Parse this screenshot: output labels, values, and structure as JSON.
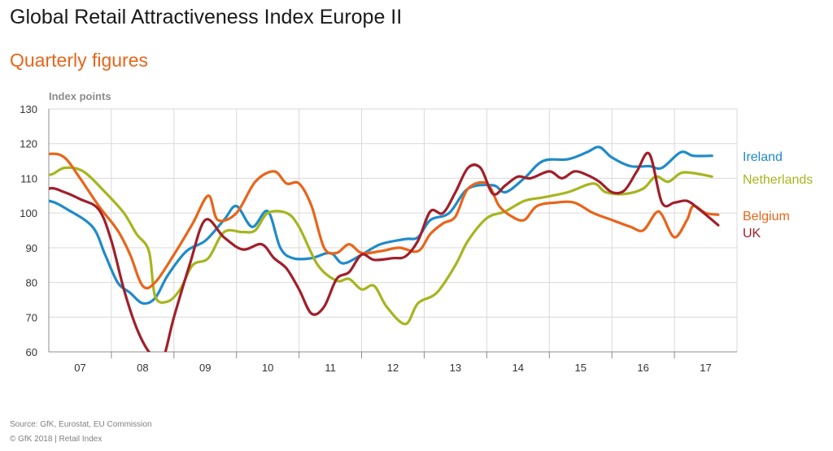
{
  "header": {
    "title": "Global Retail Attractiveness Index Europe II",
    "subtitle": "Quarterly figures"
  },
  "footer": {
    "source": "Source: GfK, Eurostat, EU  Commission",
    "copyright": "© GfK 2018 | Retail Index"
  },
  "colors": {
    "subtitle": "#e8651a",
    "grid": "#d9d9d9",
    "axis": "#8c8c8c"
  },
  "chart_data": {
    "type": "line",
    "title": "Global Retail Attractiveness Index Europe II",
    "subtitle": "Quarterly figures",
    "xlabel": "",
    "ylabel": "Index points",
    "ylim": [
      60,
      130
    ],
    "yticks": [
      60,
      70,
      80,
      90,
      100,
      110,
      120,
      130
    ],
    "categories": [
      "07",
      "08",
      "09",
      "10",
      "11",
      "12",
      "13",
      "14",
      "15",
      "16",
      "17"
    ],
    "grid": true,
    "legend": "right, inline labels at line ends",
    "series": [
      {
        "name": "Ireland",
        "color": "#1f8bc9",
        "points": [
          [
            0.0,
            102.5
          ],
          [
            0.3,
            103.5
          ],
          [
            0.6,
            101
          ],
          [
            1.0,
            96
          ],
          [
            1.2,
            88
          ],
          [
            1.4,
            80
          ],
          [
            1.6,
            77
          ],
          [
            1.8,
            74
          ],
          [
            2.0,
            75.5
          ],
          [
            2.2,
            82
          ],
          [
            2.5,
            89
          ],
          [
            2.8,
            92
          ],
          [
            3.1,
            98
          ],
          [
            3.3,
            102
          ],
          [
            3.55,
            96
          ],
          [
            3.8,
            100.5
          ],
          [
            4.0,
            90
          ],
          [
            4.2,
            87
          ],
          [
            4.5,
            87
          ],
          [
            4.8,
            88.5
          ],
          [
            5.0,
            85.5
          ],
          [
            5.3,
            88
          ],
          [
            5.6,
            91
          ],
          [
            6.0,
            92.5
          ],
          [
            6.2,
            93
          ],
          [
            6.4,
            98
          ],
          [
            6.7,
            100
          ],
          [
            7.0,
            107
          ],
          [
            7.4,
            108
          ],
          [
            7.6,
            106
          ],
          [
            7.9,
            110
          ],
          [
            8.2,
            115
          ],
          [
            8.6,
            115.5
          ],
          [
            8.9,
            117.5
          ],
          [
            9.1,
            119
          ],
          [
            9.3,
            116
          ],
          [
            9.6,
            113.5
          ],
          [
            9.9,
            113.5
          ],
          [
            10.1,
            113
          ],
          [
            10.4,
            117.5
          ],
          [
            10.6,
            116.5
          ],
          [
            10.9,
            116.5
          ]
        ]
      },
      {
        "name": "Netherlands",
        "color": "#a6b51f",
        "points": [
          [
            0.0,
            113.5
          ],
          [
            0.3,
            111
          ],
          [
            0.55,
            113
          ],
          [
            0.85,
            112
          ],
          [
            1.2,
            106
          ],
          [
            1.5,
            100
          ],
          [
            1.7,
            94
          ],
          [
            1.9,
            89
          ],
          [
            2.0,
            76
          ],
          [
            2.2,
            74.5
          ],
          [
            2.4,
            78
          ],
          [
            2.6,
            85
          ],
          [
            2.85,
            87
          ],
          [
            3.1,
            94.5
          ],
          [
            3.4,
            94.5
          ],
          [
            3.6,
            95
          ],
          [
            3.8,
            100
          ],
          [
            4.1,
            100
          ],
          [
            4.3,
            96
          ],
          [
            4.6,
            85
          ],
          [
            4.9,
            80.5
          ],
          [
            5.1,
            81
          ],
          [
            5.3,
            78
          ],
          [
            5.5,
            79
          ],
          [
            5.7,
            73
          ],
          [
            6.0,
            68
          ],
          [
            6.2,
            74
          ],
          [
            6.5,
            77
          ],
          [
            6.8,
            85
          ],
          [
            7.0,
            92
          ],
          [
            7.3,
            98.5
          ],
          [
            7.6,
            100.5
          ],
          [
            7.9,
            103.5
          ],
          [
            8.2,
            104.5
          ],
          [
            8.6,
            106
          ],
          [
            9.0,
            108.5
          ],
          [
            9.2,
            106
          ],
          [
            9.5,
            105.5
          ],
          [
            9.8,
            107
          ],
          [
            10.0,
            110.5
          ],
          [
            10.2,
            109
          ],
          [
            10.4,
            111.5
          ],
          [
            10.6,
            111.5
          ],
          [
            10.9,
            110.5
          ]
        ]
      },
      {
        "name": "Belgium",
        "color": "#e8651a",
        "points": [
          [
            0.0,
            115
          ],
          [
            0.3,
            117
          ],
          [
            0.55,
            116
          ],
          [
            0.8,
            110
          ],
          [
            1.1,
            102
          ],
          [
            1.4,
            95
          ],
          [
            1.6,
            88
          ],
          [
            1.8,
            79
          ],
          [
            2.0,
            80
          ],
          [
            2.3,
            88
          ],
          [
            2.6,
            97
          ],
          [
            2.85,
            105
          ],
          [
            3.0,
            98
          ],
          [
            3.3,
            100
          ],
          [
            3.6,
            109
          ],
          [
            3.9,
            112
          ],
          [
            4.1,
            108.5
          ],
          [
            4.3,
            108.5
          ],
          [
            4.5,
            102
          ],
          [
            4.7,
            90
          ],
          [
            4.9,
            88.5
          ],
          [
            5.1,
            91
          ],
          [
            5.3,
            88.5
          ],
          [
            5.6,
            89
          ],
          [
            5.9,
            90
          ],
          [
            6.2,
            89
          ],
          [
            6.4,
            94
          ],
          [
            6.6,
            97
          ],
          [
            6.8,
            99
          ],
          [
            7.0,
            107
          ],
          [
            7.3,
            108.5
          ],
          [
            7.5,
            102
          ],
          [
            7.7,
            99
          ],
          [
            7.9,
            98
          ],
          [
            8.1,
            102
          ],
          [
            8.4,
            103
          ],
          [
            8.7,
            103
          ],
          [
            9.0,
            100
          ],
          [
            9.3,
            98
          ],
          [
            9.6,
            96
          ],
          [
            9.8,
            95
          ],
          [
            10.0,
            100
          ],
          [
            10.1,
            99.5
          ],
          [
            10.3,
            93
          ],
          [
            10.5,
            98
          ],
          [
            10.6,
            102
          ],
          [
            10.8,
            100
          ],
          [
            11.0,
            99.5
          ]
        ]
      },
      {
        "name": "UK",
        "color": "#a0202a",
        "points": [
          [
            0.0,
            103
          ],
          [
            0.3,
            107
          ],
          [
            0.55,
            106
          ],
          [
            0.8,
            104
          ],
          [
            1.1,
            101
          ],
          [
            1.3,
            92
          ],
          [
            1.5,
            78
          ],
          [
            1.7,
            67
          ],
          [
            1.9,
            60
          ],
          [
            2.1,
            57
          ],
          [
            2.3,
            70
          ],
          [
            2.55,
            85
          ],
          [
            2.8,
            98
          ],
          [
            3.1,
            93
          ],
          [
            3.4,
            89.5
          ],
          [
            3.7,
            91
          ],
          [
            3.9,
            87
          ],
          [
            4.1,
            84
          ],
          [
            4.3,
            78
          ],
          [
            4.5,
            71
          ],
          [
            4.7,
            73
          ],
          [
            4.9,
            81
          ],
          [
            5.1,
            83
          ],
          [
            5.3,
            88
          ],
          [
            5.5,
            86.5
          ],
          [
            5.8,
            87
          ],
          [
            6.0,
            87.5
          ],
          [
            6.2,
            92
          ],
          [
            6.4,
            100.5
          ],
          [
            6.6,
            100
          ],
          [
            6.8,
            106
          ],
          [
            7.0,
            113
          ],
          [
            7.2,
            113
          ],
          [
            7.4,
            105.5
          ],
          [
            7.6,
            108
          ],
          [
            7.8,
            110.5
          ],
          [
            8.0,
            110
          ],
          [
            8.3,
            112
          ],
          [
            8.5,
            110
          ],
          [
            8.7,
            112
          ],
          [
            8.9,
            111
          ],
          [
            9.1,
            109
          ],
          [
            9.3,
            106
          ],
          [
            9.5,
            106.5
          ],
          [
            9.7,
            112
          ],
          [
            9.9,
            117
          ],
          [
            10.1,
            103
          ],
          [
            10.3,
            103
          ],
          [
            10.5,
            103.5
          ],
          [
            10.7,
            101
          ],
          [
            11.0,
            96.5
          ]
        ]
      }
    ]
  }
}
